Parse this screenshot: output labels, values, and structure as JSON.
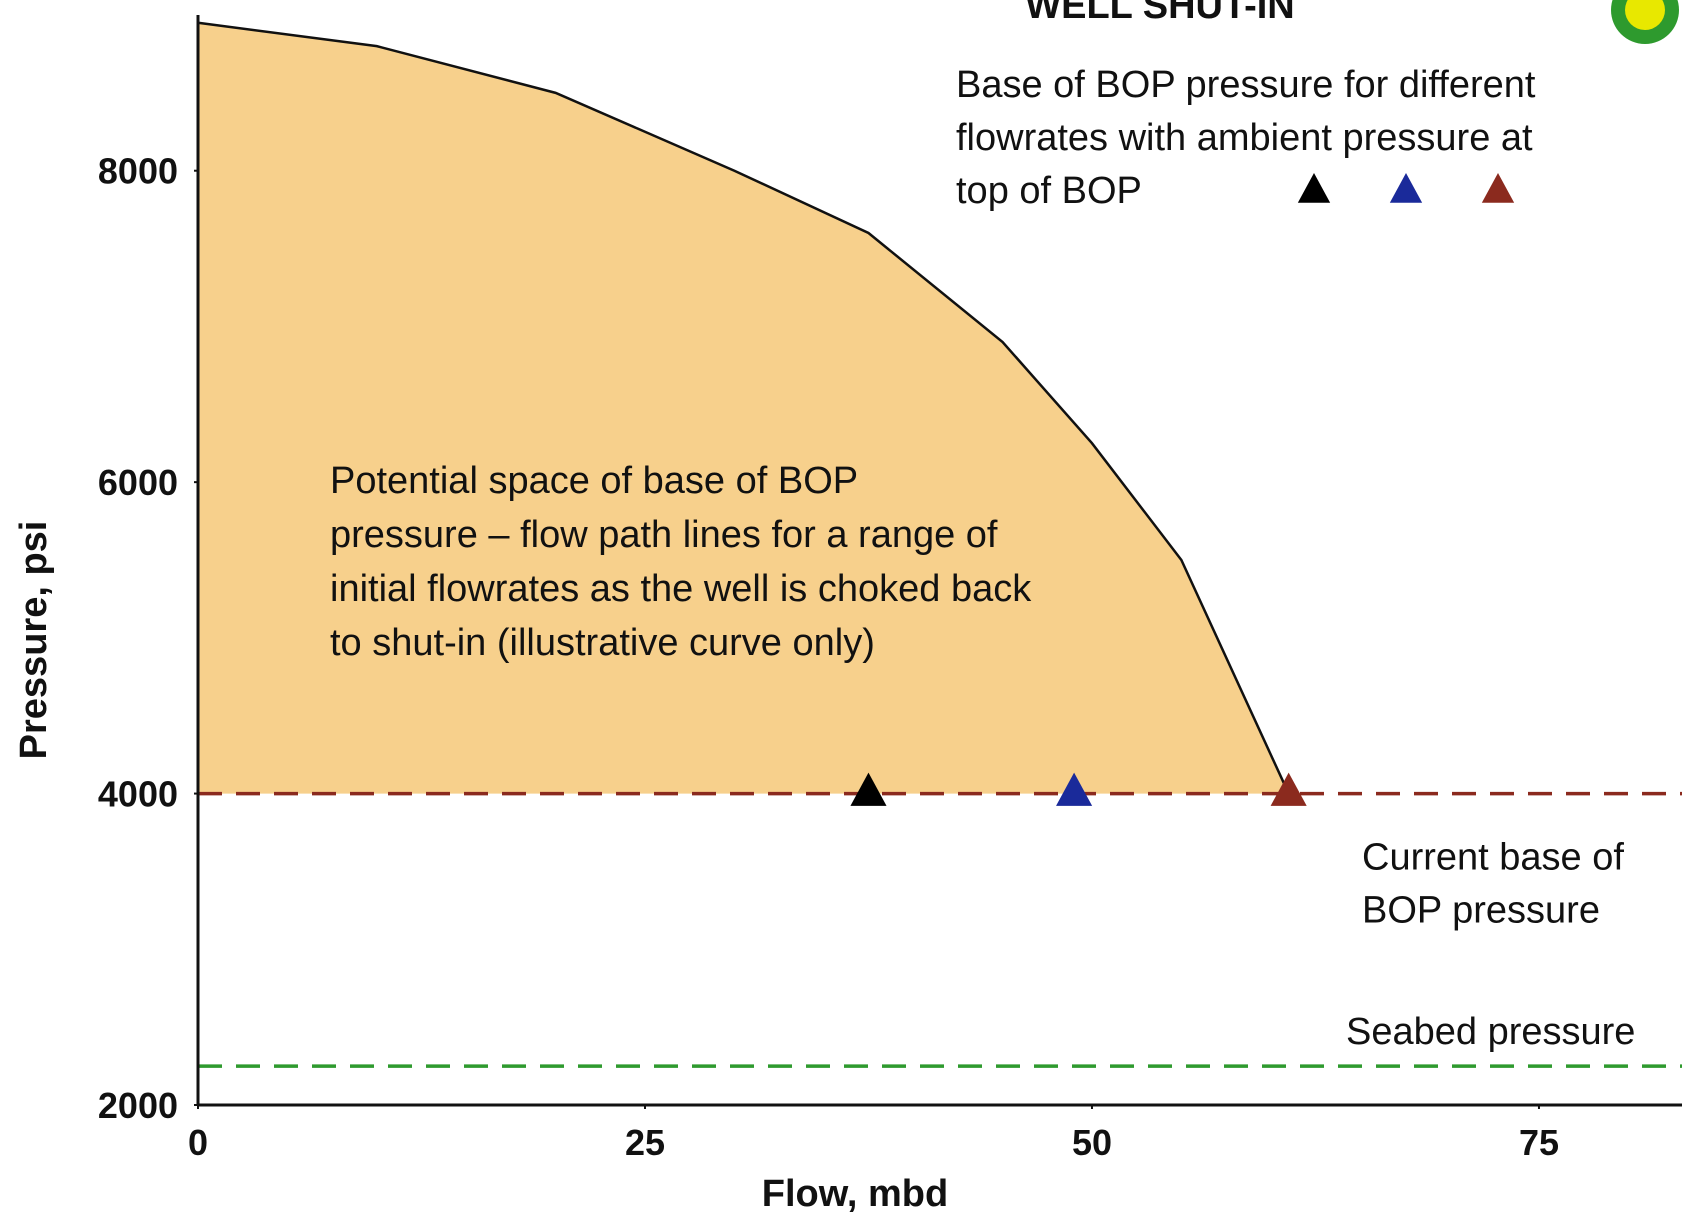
{
  "chart_data": {
    "type": "area",
    "title": "WELL SHUT-IN",
    "x_label": "Flow, mbd",
    "y_label": "Pressure, psi",
    "xlim": [
      0,
      83
    ],
    "ylim": [
      2000,
      9000
    ],
    "xticks": [
      0,
      25,
      50,
      75
    ],
    "yticks": [
      2000,
      4000,
      6000,
      8000
    ],
    "grid": false,
    "area": {
      "color": "#f7d08c",
      "x": [
        0,
        10,
        20,
        30,
        37.5,
        45,
        50,
        55,
        61
      ],
      "y": [
        8950,
        8800,
        8500,
        8000,
        7600,
        6900,
        6250,
        5500,
        4000
      ],
      "label": [
        "Potential space of base of BOP",
        "pressure – flow path lines for a range of",
        "initial flowrates as the well is choked back",
        "to shut-in (illustrative curve only)"
      ]
    },
    "lines": [
      {
        "label": [
          "Current base of",
          "BOP pressure"
        ],
        "value": 4000,
        "color": "#8b2a1e"
      },
      {
        "label": [
          "Seabed pressure"
        ],
        "value": 2250,
        "color": "#2e9a2e"
      }
    ],
    "legend": [
      "Base of BOP pressure for different",
      "flowrates with ambient pressure at",
      "top of BOP"
    ],
    "points": [
      {
        "x": 37.5,
        "y": 4000,
        "color": "#000000"
      },
      {
        "x": 49,
        "y": 4000,
        "color": "#1a2a9a"
      },
      {
        "x": 61,
        "y": 4000,
        "color": "#8b2a1e"
      }
    ]
  }
}
